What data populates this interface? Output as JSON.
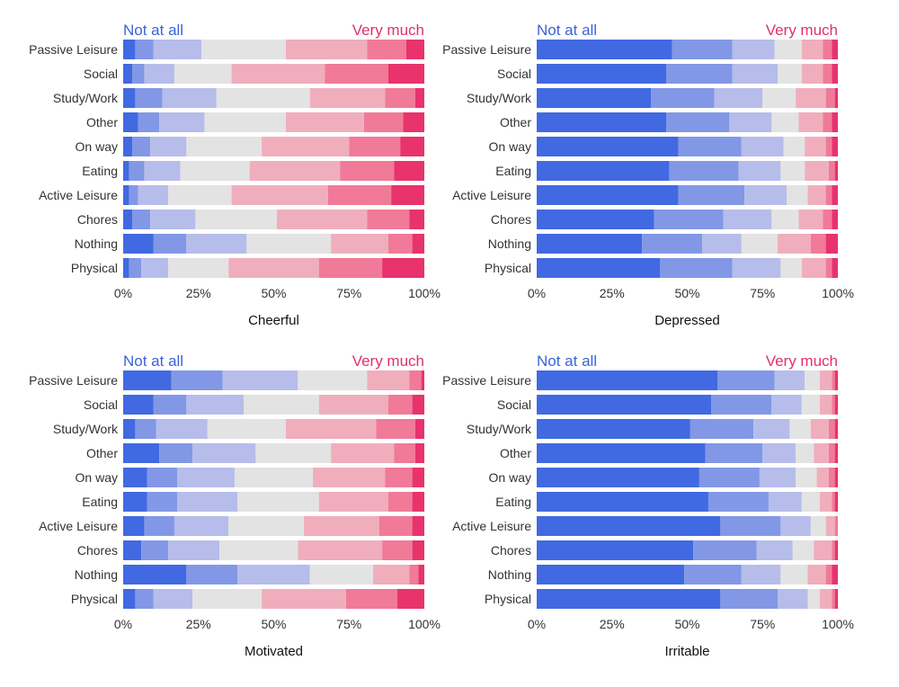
{
  "legend": {
    "left_label": "Not at all",
    "right_label": "Very much"
  },
  "colors": [
    "#4169e1",
    "#8298e6",
    "#b6bdea",
    "#e3e3e3",
    "#f0aebd",
    "#f07a98",
    "#e8336d"
  ],
  "chart_data": [
    {
      "type": "bar",
      "stacked": "100%",
      "orientation": "horizontal",
      "title": "",
      "xlabel": "Cheerful",
      "ylabel": "",
      "xlim": [
        0,
        100
      ],
      "xticks": [
        "0%",
        "25%",
        "50%",
        "75%",
        "100%"
      ],
      "categories": [
        "Passive Leisure",
        "Social",
        "Study/Work",
        "Other",
        "On way",
        "Eating",
        "Active Leisure",
        "Chores",
        "Nothing",
        "Physical"
      ],
      "values": [
        [
          4,
          6,
          16,
          28,
          27,
          13,
          6
        ],
        [
          3,
          4,
          10,
          19,
          31,
          21,
          12
        ],
        [
          4,
          9,
          18,
          31,
          25,
          10,
          3
        ],
        [
          5,
          7,
          15,
          27,
          26,
          13,
          7
        ],
        [
          3,
          6,
          12,
          25,
          29,
          17,
          8
        ],
        [
          2,
          5,
          12,
          23,
          30,
          18,
          10
        ],
        [
          2,
          3,
          10,
          21,
          32,
          21,
          11
        ],
        [
          3,
          6,
          15,
          27,
          30,
          14,
          5
        ],
        [
          10,
          11,
          20,
          28,
          19,
          8,
          4
        ],
        [
          2,
          4,
          9,
          20,
          30,
          21,
          14
        ]
      ]
    },
    {
      "type": "bar",
      "stacked": "100%",
      "orientation": "horizontal",
      "title": "",
      "xlabel": "Depressed",
      "ylabel": "",
      "xlim": [
        0,
        100
      ],
      "xticks": [
        "0%",
        "25%",
        "50%",
        "75%",
        "100%"
      ],
      "categories": [
        "Passive Leisure",
        "Social",
        "Study/Work",
        "Other",
        "On way",
        "Eating",
        "Active Leisure",
        "Chores",
        "Nothing",
        "Physical"
      ],
      "values": [
        [
          45,
          20,
          14,
          9,
          7,
          3,
          2
        ],
        [
          43,
          22,
          15,
          8,
          7,
          3,
          2
        ],
        [
          38,
          21,
          16,
          11,
          10,
          3,
          1
        ],
        [
          43,
          21,
          14,
          9,
          8,
          3,
          2
        ],
        [
          47,
          21,
          14,
          7,
          7,
          2,
          2
        ],
        [
          44,
          23,
          14,
          8,
          8,
          2,
          1
        ],
        [
          47,
          22,
          14,
          7,
          6,
          2,
          2
        ],
        [
          39,
          23,
          16,
          9,
          8,
          3,
          2
        ],
        [
          35,
          20,
          13,
          12,
          11,
          5,
          4
        ],
        [
          41,
          24,
          16,
          7,
          8,
          2,
          2
        ]
      ]
    },
    {
      "type": "bar",
      "stacked": "100%",
      "orientation": "horizontal",
      "title": "",
      "xlabel": "Motivated",
      "ylabel": "",
      "xlim": [
        0,
        100
      ],
      "xticks": [
        "0%",
        "25%",
        "50%",
        "75%",
        "100%"
      ],
      "categories": [
        "Passive Leisure",
        "Social",
        "Study/Work",
        "Other",
        "On way",
        "Eating",
        "Active Leisure",
        "Chores",
        "Nothing",
        "Physical"
      ],
      "values": [
        [
          16,
          17,
          25,
          23,
          14,
          4,
          1
        ],
        [
          10,
          11,
          19,
          25,
          23,
          8,
          4
        ],
        [
          4,
          7,
          17,
          26,
          30,
          13,
          3
        ],
        [
          12,
          11,
          21,
          25,
          21,
          7,
          3
        ],
        [
          8,
          10,
          19,
          26,
          24,
          9,
          4
        ],
        [
          8,
          10,
          20,
          27,
          23,
          8,
          4
        ],
        [
          7,
          10,
          18,
          25,
          25,
          11,
          4
        ],
        [
          6,
          9,
          17,
          26,
          28,
          10,
          4
        ],
        [
          21,
          17,
          24,
          21,
          12,
          3,
          2
        ],
        [
          4,
          6,
          13,
          23,
          28,
          17,
          9
        ]
      ]
    },
    {
      "type": "bar",
      "stacked": "100%",
      "orientation": "horizontal",
      "title": "",
      "xlabel": "Irritable",
      "ylabel": "",
      "xlim": [
        0,
        100
      ],
      "xticks": [
        "0%",
        "25%",
        "50%",
        "75%",
        "100%"
      ],
      "categories": [
        "Passive Leisure",
        "Social",
        "Study/Work",
        "Other",
        "On way",
        "Eating",
        "Active Leisure",
        "Chores",
        "Nothing",
        "Physical"
      ],
      "values": [
        [
          60,
          19,
          10,
          5,
          4,
          1,
          1
        ],
        [
          58,
          20,
          10,
          6,
          4,
          1,
          1
        ],
        [
          51,
          21,
          12,
          7,
          6,
          2,
          1
        ],
        [
          56,
          19,
          11,
          6,
          5,
          2,
          1
        ],
        [
          54,
          20,
          12,
          7,
          4,
          2,
          1
        ],
        [
          57,
          20,
          11,
          6,
          4,
          1,
          1
        ],
        [
          61,
          20,
          10,
          5,
          3,
          1,
          0
        ],
        [
          52,
          21,
          12,
          7,
          6,
          1,
          1
        ],
        [
          49,
          19,
          13,
          9,
          6,
          2,
          2
        ],
        [
          61,
          19,
          10,
          4,
          4,
          1,
          1
        ]
      ]
    }
  ]
}
